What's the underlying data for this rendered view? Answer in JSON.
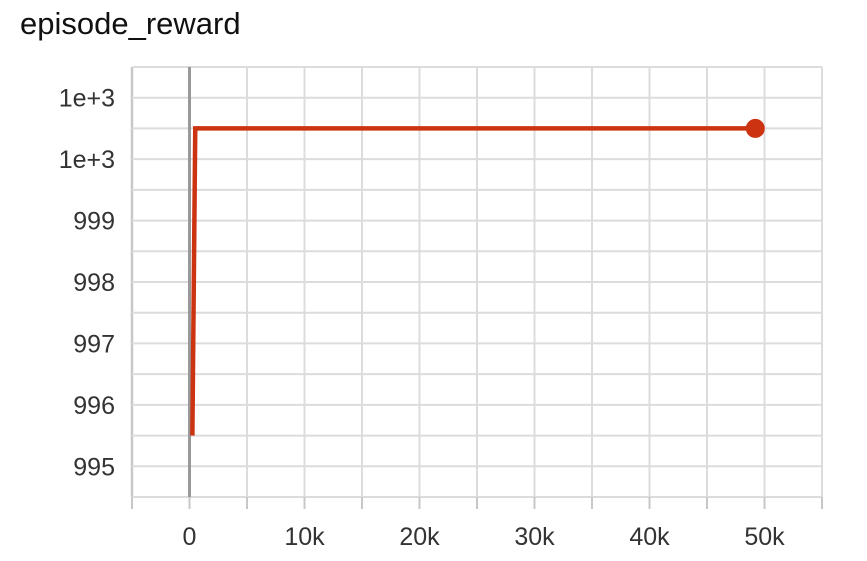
{
  "chart_data": {
    "type": "line",
    "title": "episode_reward",
    "xlabel": "",
    "ylabel": "",
    "xlim": [
      -5000,
      55000
    ],
    "ylim": [
      994.5,
      1001.5
    ],
    "x_ticks": [
      {
        "value": 0,
        "label": "0"
      },
      {
        "value": 10000,
        "label": "10k"
      },
      {
        "value": 20000,
        "label": "20k"
      },
      {
        "value": 30000,
        "label": "30k"
      },
      {
        "value": 40000,
        "label": "40k"
      },
      {
        "value": 50000,
        "label": "50k"
      }
    ],
    "y_ticks": [
      {
        "value": 1001,
        "label": "1e+3"
      },
      {
        "value": 1000,
        "label": "1e+3"
      },
      {
        "value": 999,
        "label": "999"
      },
      {
        "value": 998,
        "label": "998"
      },
      {
        "value": 997,
        "label": "997"
      },
      {
        "value": 996,
        "label": "996"
      },
      {
        "value": 995,
        "label": "995"
      }
    ],
    "grid": true,
    "series": [
      {
        "color": "#cc3311",
        "points": [
          {
            "x": 250,
            "y": 995.5
          },
          {
            "x": 500,
            "y": 1000.5
          },
          {
            "x": 49200,
            "y": 1000.5
          }
        ]
      }
    ]
  }
}
